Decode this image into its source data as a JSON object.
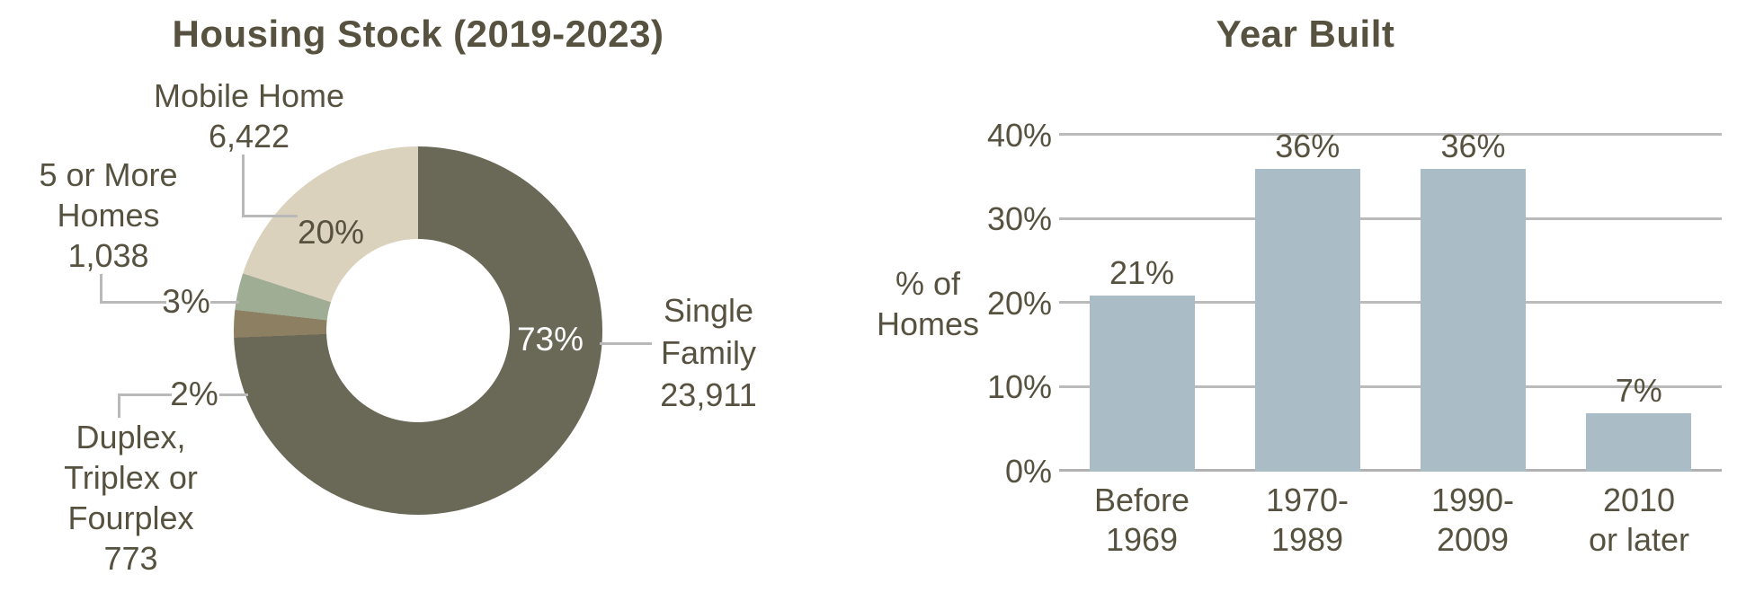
{
  "page": {
    "background": "#ffffff",
    "text_color": "#575240",
    "gridline_color": "#bbbbbb",
    "leader_line_color": "#b9b9b9"
  },
  "chart_data": [
    {
      "type": "pie",
      "subtype": "donut",
      "title": "Housing Stock (2019-2023)",
      "direction": "clockwise",
      "start_angle_deg": 0,
      "slices": [
        {
          "label": "Single Family",
          "count": "23,911",
          "value": 23911,
          "pct_label": "73%",
          "color": "#6a6856",
          "pct_label_color": "#ffffff"
        },
        {
          "label": "Duplex, Triplex or Fourplex",
          "count": "773",
          "value": 773,
          "pct_label": "2%",
          "color": "#8d7f62",
          "pct_label_color": "#575240"
        },
        {
          "label": "5 or More Homes",
          "count": "1,038",
          "value": 1038,
          "pct_label": "3%",
          "color": "#9ead94",
          "pct_label_color": "#575240"
        },
        {
          "label": "Mobile Home",
          "count": "6,422",
          "value": 6422,
          "pct_label": "20%",
          "color": "#dbd2be",
          "pct_label_color": "#575240"
        }
      ],
      "legend": "none"
    },
    {
      "type": "bar",
      "title": "Year Built",
      "categories": [
        "Before\n1969",
        "1970-\n1989",
        "1990-\n2009",
        "2010\nor later"
      ],
      "values": [
        21,
        36,
        36,
        7
      ],
      "value_labels": [
        "21%",
        "36%",
        "36%",
        "7%"
      ],
      "ylabel": "% of\nHomes",
      "yticks": [
        "0%",
        "10%",
        "20%",
        "30%",
        "40%"
      ],
      "ylim": [
        0,
        40
      ],
      "grid": true,
      "legend": "none",
      "bar_color": "#aabdc6"
    }
  ]
}
